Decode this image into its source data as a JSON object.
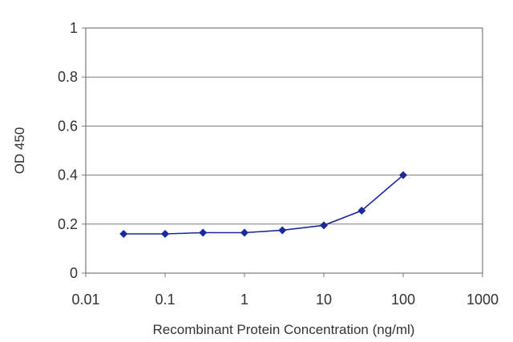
{
  "chart_data": {
    "type": "line",
    "title": "",
    "xlabel": "Recombinant Protein Concentration (ng/ml)",
    "ylabel": "OD 450",
    "x_scale": "log",
    "xlim": [
      0.01,
      1000
    ],
    "ylim": [
      0,
      1
    ],
    "x_ticks": [
      "0.01",
      "0.1",
      "1",
      "10",
      "100",
      "1000"
    ],
    "y_ticks": [
      "0",
      "0.2",
      "0.4",
      "0.6",
      "0.8",
      "1"
    ],
    "grid": "horizontal",
    "legend": "none",
    "series": [
      {
        "color": "#1a2a9c",
        "x": [
          0.03,
          0.1,
          0.3,
          1,
          3,
          10,
          30,
          100
        ],
        "y": [
          0.16,
          0.16,
          0.165,
          0.165,
          0.175,
          0.195,
          0.255,
          0.4
        ]
      }
    ]
  }
}
